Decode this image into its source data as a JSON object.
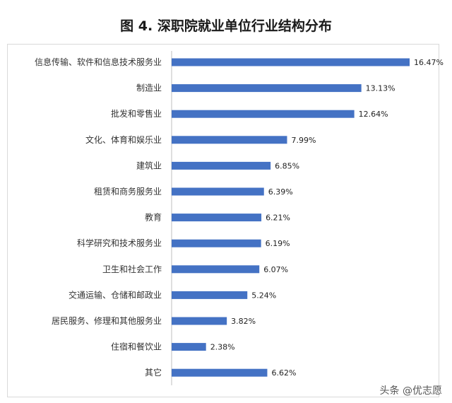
{
  "chart_data": {
    "type": "bar",
    "orientation": "horizontal",
    "title": "图 4. 深职院就业单位行业结构分布",
    "categories": [
      "信息传输、软件和信息技术服务业",
      "制造业",
      "批发和零售业",
      "文化、体育和娱乐业",
      "建筑业",
      "租赁和商务服务业",
      "教育",
      "科学研究和技术服务业",
      "卫生和社会工作",
      "交通运输、仓储和邮政业",
      "居民服务、修理和其他服务业",
      "住宿和餐饮业",
      "其它"
    ],
    "values": [
      16.47,
      13.13,
      12.64,
      7.99,
      6.85,
      6.39,
      6.21,
      6.19,
      6.07,
      5.24,
      3.82,
      2.38,
      6.62
    ],
    "value_labels": [
      "16.47%",
      "13.13%",
      "12.64%",
      "7.99%",
      "6.85%",
      "6.39%",
      "6.21%",
      "6.19%",
      "6.07%",
      "5.24%",
      "3.82%",
      "2.38%",
      "6.62%"
    ],
    "xlim": [
      0,
      16.47
    ],
    "bar_color": "#4472c4",
    "grid": false,
    "legend": "none"
  },
  "footer": {
    "text": "头条 @优志愿"
  }
}
